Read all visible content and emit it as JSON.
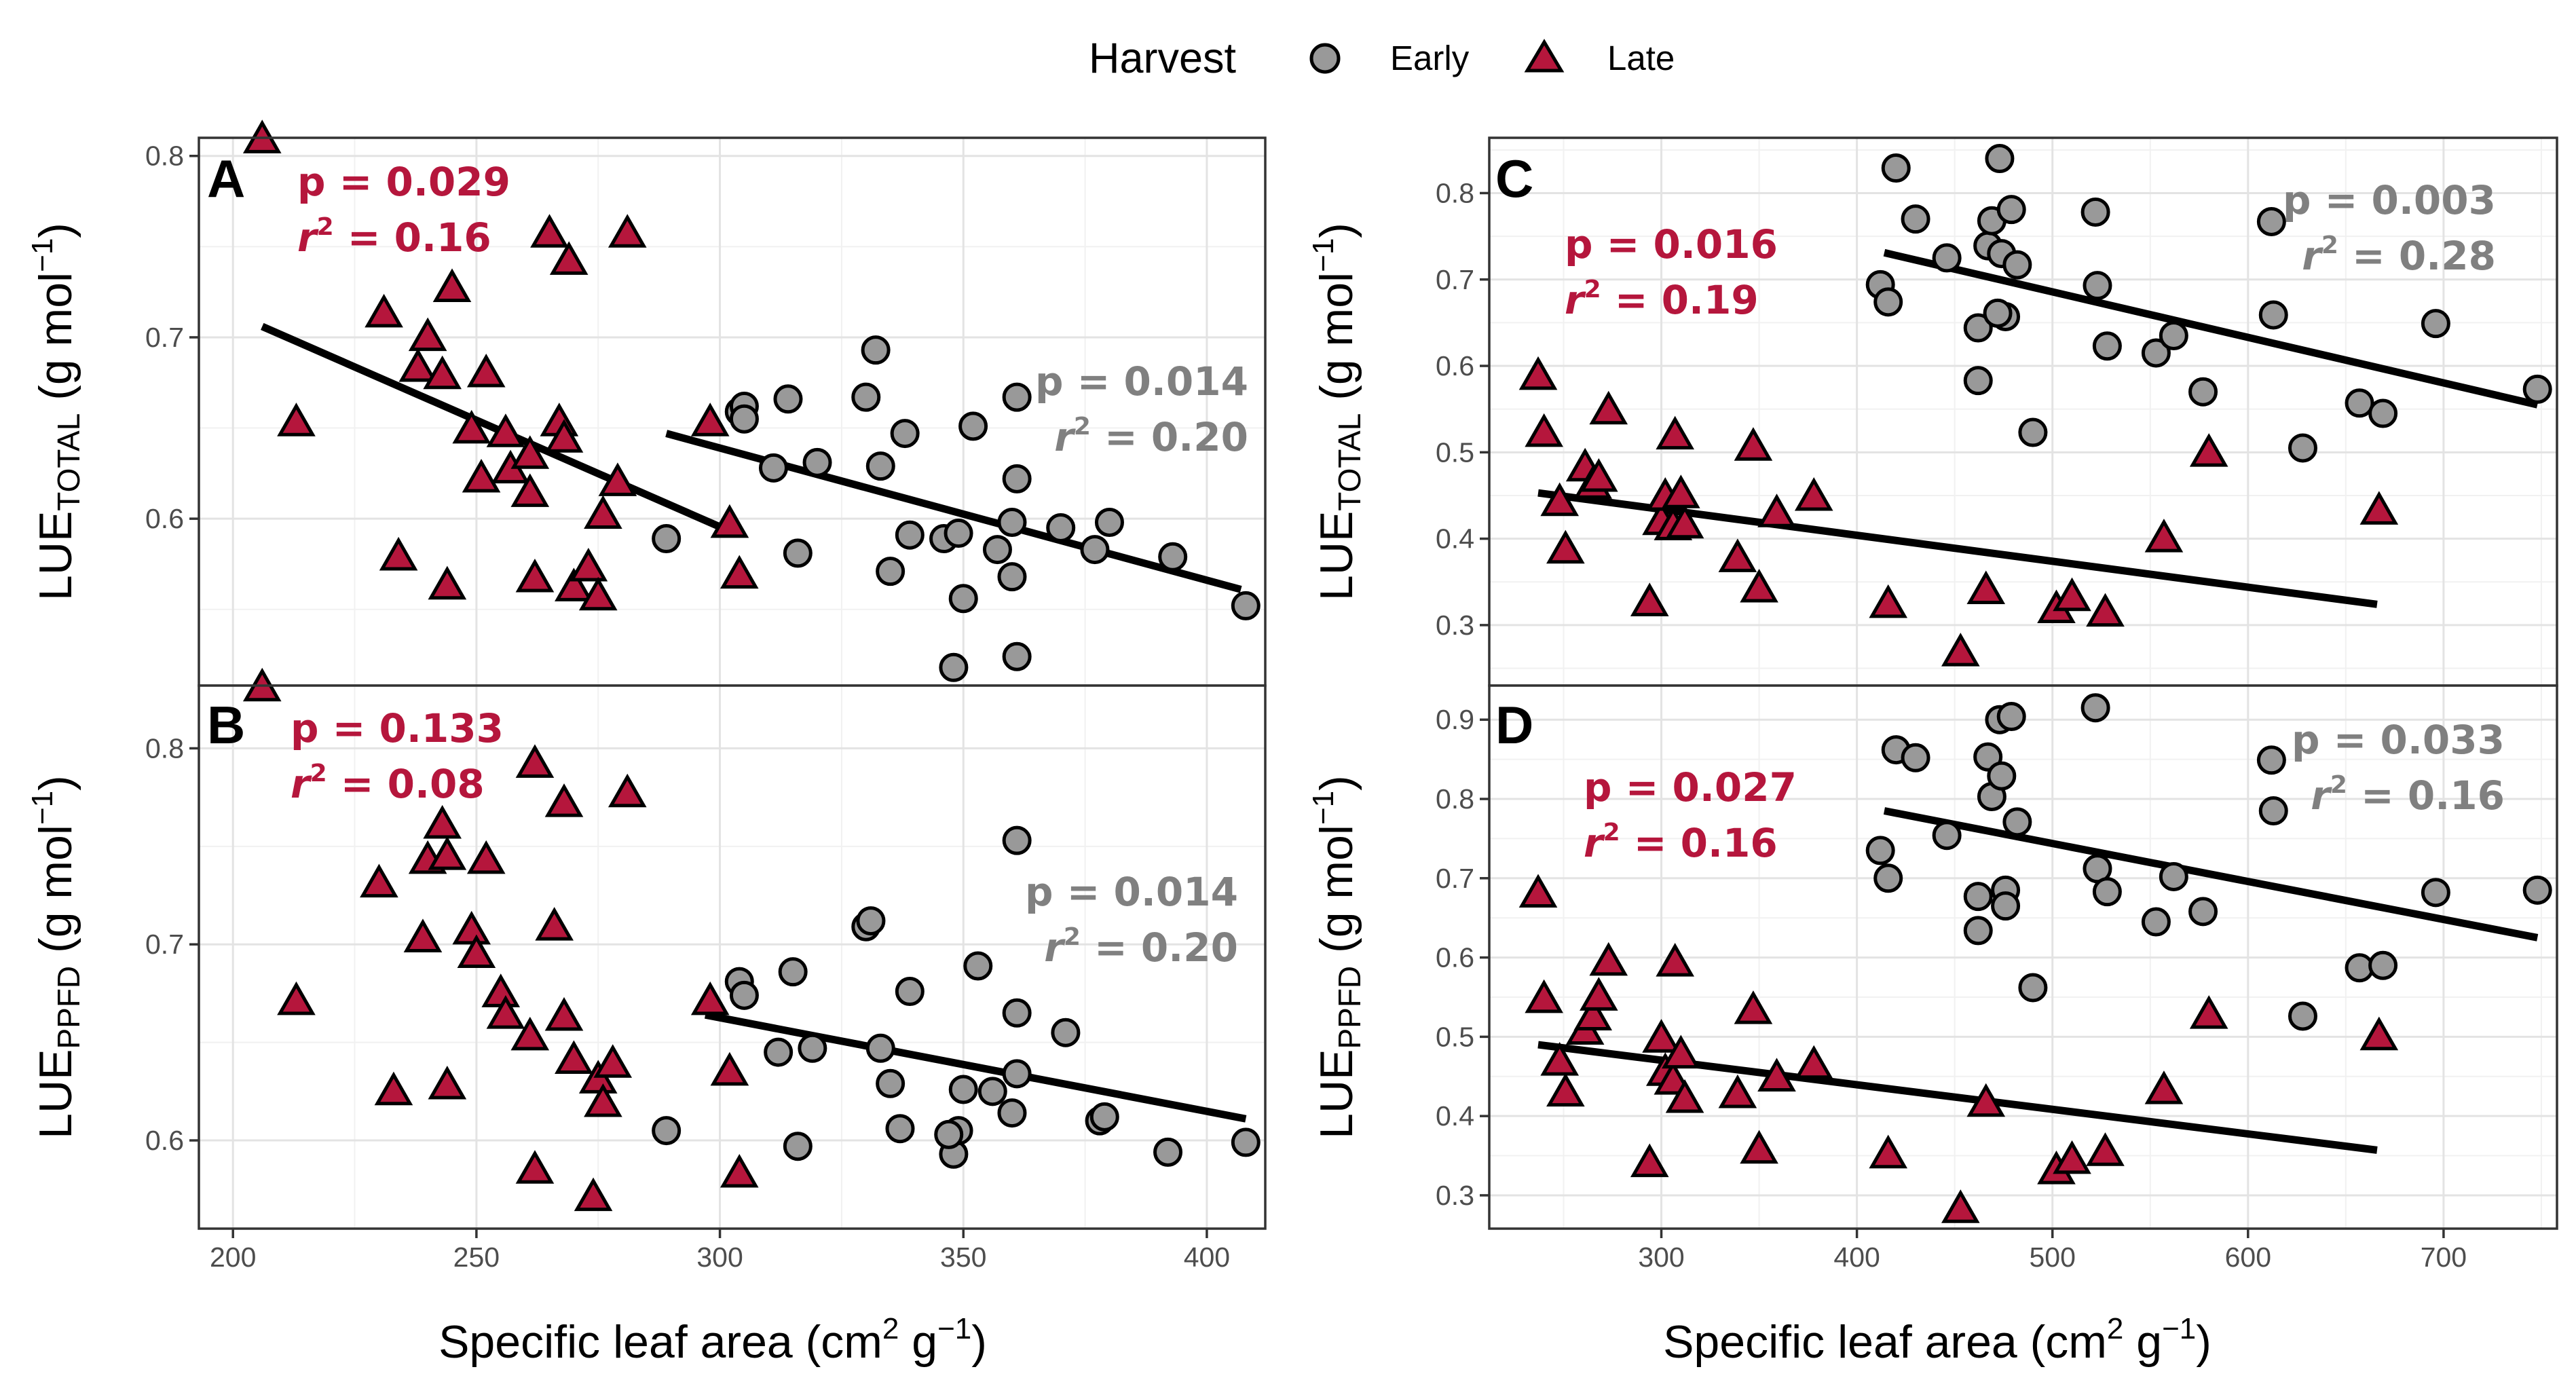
{
  "legend": {
    "title": "Harvest",
    "items": [
      {
        "name": "Early",
        "shape": "circle",
        "color": "#999999"
      },
      {
        "name": "Late",
        "shape": "triangle",
        "color": "#b5163c"
      }
    ]
  },
  "colors": {
    "early": "#999999",
    "late": "#b5163c",
    "stat_early": "#808080",
    "stat_late": "#b5163c"
  },
  "x_axis_title": {
    "main": "Specific leaf area (cm",
    "sup1": "2",
    "mid": " g",
    "sup2": "−1",
    "end": ")"
  },
  "chart_data": [
    {
      "panel": "A",
      "type": "scatter",
      "ylabel": {
        "main": "LUE",
        "sub": "TOTAL",
        "unit": " (g mol",
        "sup": "−1",
        "end": ")"
      },
      "xlim": [
        193,
        412
      ],
      "ylim": [
        0.508,
        0.81
      ],
      "x_ticks": [
        200,
        250,
        300,
        350,
        400
      ],
      "y_ticks": [
        0.6,
        0.7,
        0.8
      ],
      "y_tick_labels": [
        "0.6",
        "0.7",
        "0.8"
      ],
      "x_tick_labels": [],
      "stats": {
        "late": {
          "p": "p = 0.029",
          "r2_label": "r",
          "r2_sup": "2",
          "r2_value": " = 0.16"
        },
        "early": {
          "p": "p = 0.014",
          "r2_label": "r",
          "r2_sup": "2",
          "r2_value": " = 0.20"
        }
      },
      "fits": {
        "late": {
          "x": [
            206,
            303
          ],
          "y": [
            0.706,
            0.592
          ]
        },
        "early": {
          "x": [
            289,
            407
          ],
          "y": [
            0.647,
            0.561
          ]
        }
      },
      "series": [
        {
          "name": "Late",
          "x": [
            206,
            213,
            231,
            234,
            238,
            240,
            243,
            244,
            245,
            252,
            249,
            251,
            256,
            257,
            261,
            261,
            262,
            265,
            267,
            268,
            269,
            270,
            273,
            275,
            276,
            279,
            281,
            298,
            302,
            304
          ],
          "y": [
            0.808,
            0.652,
            0.712,
            0.578,
            0.682,
            0.699,
            0.678,
            0.562,
            0.726,
            0.679,
            0.648,
            0.621,
            0.646,
            0.626,
            0.634,
            0.613,
            0.566,
            0.756,
            0.652,
            0.643,
            0.741,
            0.561,
            0.572,
            0.556,
            0.601,
            0.619,
            0.756,
            0.652,
            0.596,
            0.568
          ]
        },
        {
          "name": "Early",
          "x": [
            289,
            304,
            305,
            305,
            311,
            314,
            316,
            320,
            330,
            332,
            333,
            335,
            338,
            339,
            346,
            348,
            349,
            350,
            352,
            357,
            360,
            360,
            361,
            361,
            361,
            370,
            377,
            380,
            393,
            408
          ],
          "y": [
            0.589,
            0.659,
            0.662,
            0.655,
            0.628,
            0.666,
            0.581,
            0.631,
            0.667,
            0.693,
            0.629,
            0.571,
            0.647,
            0.591,
            0.589,
            0.518,
            0.592,
            0.556,
            0.651,
            0.583,
            0.568,
            0.598,
            0.622,
            0.524,
            0.667,
            0.595,
            0.583,
            0.598,
            0.579,
            0.552
          ]
        }
      ]
    },
    {
      "panel": "B",
      "type": "scatter",
      "ylabel": {
        "main": "LUE",
        "sub": "PPFD",
        "unit": " (g mol",
        "sup": "−1",
        "end": ")"
      },
      "xlim": [
        193,
        412
      ],
      "ylim": [
        0.555,
        0.832
      ],
      "x_ticks": [
        200,
        250,
        300,
        350,
        400
      ],
      "y_ticks": [
        0.6,
        0.7,
        0.8
      ],
      "y_tick_labels": [
        "0.6",
        "0.7",
        "0.8"
      ],
      "x_tick_labels": [
        "200",
        "250",
        "300",
        "350",
        "400"
      ],
      "stats": {
        "late": {
          "p": "p = 0.133",
          "r2_label": "r",
          "r2_sup": "2",
          "r2_value": " = 0.08"
        },
        "early": {
          "p": "p = 0.014",
          "r2_label": "r",
          "r2_sup": "2",
          "r2_value": " = 0.20"
        }
      },
      "fits": {
        "early": {
          "x": [
            297,
            408
          ],
          "y": [
            0.664,
            0.611
          ]
        }
      },
      "series": [
        {
          "name": "Late",
          "x": [
            206,
            213,
            230,
            233,
            239,
            240,
            243,
            244,
            244,
            252,
            249,
            250,
            255,
            256,
            261,
            262,
            262,
            266,
            268,
            268,
            270,
            275,
            276,
            278,
            281,
            298,
            302,
            304,
            274
          ],
          "y": [
            0.83,
            0.67,
            0.73,
            0.624,
            0.702,
            0.742,
            0.76,
            0.744,
            0.627,
            0.742,
            0.706,
            0.694,
            0.674,
            0.663,
            0.652,
            0.584,
            0.791,
            0.708,
            0.662,
            0.771,
            0.64,
            0.63,
            0.618,
            0.638,
            0.776,
            0.67,
            0.634,
            0.582,
            0.57
          ]
        },
        {
          "name": "Early",
          "x": [
            289,
            304,
            305,
            312,
            315,
            316,
            319,
            330,
            331,
            333,
            335,
            337,
            339,
            348,
            349,
            350,
            353,
            356,
            360,
            361,
            361,
            361,
            371,
            378,
            379,
            392,
            408,
            347
          ],
          "y": [
            0.605,
            0.681,
            0.674,
            0.645,
            0.686,
            0.597,
            0.647,
            0.709,
            0.712,
            0.647,
            0.629,
            0.606,
            0.676,
            0.593,
            0.605,
            0.626,
            0.689,
            0.625,
            0.614,
            0.634,
            0.665,
            0.753,
            0.655,
            0.61,
            0.612,
            0.594,
            0.599,
            0.603
          ]
        }
      ]
    },
    {
      "panel": "C",
      "type": "scatter",
      "ylabel": {
        "main": "LUE",
        "sub": "TOTAL",
        "unit": " (g mol",
        "sup": "−1",
        "end": ")"
      },
      "xlim": [
        212,
        758
      ],
      "ylim": [
        0.23,
        0.864
      ],
      "x_ticks": [
        300,
        400,
        500,
        600,
        700
      ],
      "y_ticks": [
        0.3,
        0.4,
        0.5,
        0.6,
        0.7,
        0.8
      ],
      "y_tick_labels": [
        "0.3",
        "0.4",
        "0.5",
        "0.6",
        "0.7",
        "0.8"
      ],
      "x_tick_labels": [],
      "stats": {
        "late": {
          "p": "p = 0.016",
          "r2_label": "r",
          "r2_sup": "2",
          "r2_value": " = 0.19"
        },
        "early": {
          "p": "p = 0.003",
          "r2_label": "r",
          "r2_sup": "2",
          "r2_value": " = 0.28"
        }
      },
      "fits": {
        "late": {
          "x": [
            237,
            666
          ],
          "y": [
            0.453,
            0.324
          ]
        },
        "early": {
          "x": [
            414,
            748
          ],
          "y": [
            0.731,
            0.555
          ]
        }
      },
      "series": [
        {
          "name": "Late",
          "x": [
            237,
            240,
            248,
            251,
            261,
            265,
            268,
            273,
            294,
            300,
            302,
            306,
            307,
            310,
            312,
            339,
            347,
            350,
            359,
            378,
            416,
            453,
            466,
            502,
            510,
            527,
            557,
            580,
            667
          ],
          "y": [
            0.586,
            0.52,
            0.44,
            0.385,
            0.48,
            0.46,
            0.468,
            0.546,
            0.324,
            0.418,
            0.446,
            0.412,
            0.517,
            0.449,
            0.414,
            0.375,
            0.504,
            0.34,
            0.427,
            0.446,
            0.322,
            0.266,
            0.338,
            0.316,
            0.33,
            0.312,
            0.398,
            0.497,
            0.43
          ]
        },
        {
          "name": "Early",
          "x": [
            412,
            416,
            420,
            430,
            446,
            462,
            462,
            467,
            469,
            473,
            474,
            476,
            479,
            482,
            490,
            522,
            523,
            528,
            553,
            562,
            577,
            612,
            613,
            628,
            657,
            669,
            696,
            748,
            472
          ],
          "y": [
            0.694,
            0.674,
            0.829,
            0.77,
            0.725,
            0.644,
            0.583,
            0.739,
            0.768,
            0.84,
            0.73,
            0.657,
            0.781,
            0.717,
            0.523,
            0.778,
            0.693,
            0.623,
            0.615,
            0.635,
            0.57,
            0.767,
            0.659,
            0.505,
            0.557,
            0.545,
            0.649,
            0.573,
            0.661
          ]
        }
      ]
    },
    {
      "panel": "D",
      "type": "scatter",
      "ylabel": {
        "main": "LUE",
        "sub": "PPFD",
        "unit": " (g mol",
        "sup": "−1",
        "end": ")"
      },
      "xlim": [
        212,
        758
      ],
      "ylim": [
        0.258,
        0.943
      ],
      "x_ticks": [
        300,
        400,
        500,
        600,
        700
      ],
      "y_ticks": [
        0.3,
        0.4,
        0.5,
        0.6,
        0.7,
        0.8,
        0.9
      ],
      "y_tick_labels": [
        "0.3",
        "0.4",
        "0.5",
        "0.6",
        "0.7",
        "0.8",
        "0.9"
      ],
      "x_tick_labels": [
        "300",
        "400",
        "500",
        "600",
        "700"
      ],
      "stats": {
        "late": {
          "p": "p = 0.027",
          "r2_label": "r",
          "r2_sup": "2",
          "r2_value": " = 0.16"
        },
        "early": {
          "p": "p = 0.033",
          "r2_label": "r",
          "r2_sup": "2",
          "r2_value": " = 0.16"
        }
      },
      "fits": {
        "late": {
          "x": [
            237,
            666
          ],
          "y": [
            0.49,
            0.357
          ]
        },
        "early": {
          "x": [
            414,
            748
          ],
          "y": [
            0.785,
            0.625
          ]
        }
      },
      "series": [
        {
          "name": "Late",
          "x": [
            237,
            240,
            248,
            251,
            261,
            265,
            268,
            273,
            294,
            300,
            302,
            306,
            307,
            310,
            312,
            339,
            347,
            350,
            359,
            378,
            416,
            453,
            466,
            502,
            510,
            527,
            557,
            580,
            667
          ],
          "y": [
            0.678,
            0.545,
            0.466,
            0.427,
            0.505,
            0.523,
            0.548,
            0.592,
            0.338,
            0.495,
            0.453,
            0.442,
            0.591,
            0.475,
            0.419,
            0.425,
            0.531,
            0.355,
            0.446,
            0.462,
            0.349,
            0.28,
            0.414,
            0.329,
            0.342,
            0.352,
            0.43,
            0.525,
            0.498
          ]
        },
        {
          "name": "Early",
          "x": [
            412,
            416,
            420,
            430,
            446,
            462,
            462,
            467,
            469,
            473,
            474,
            476,
            479,
            482,
            490,
            522,
            523,
            528,
            553,
            562,
            577,
            612,
            613,
            628,
            657,
            669,
            696,
            748,
            476
          ],
          "y": [
            0.735,
            0.7,
            0.862,
            0.852,
            0.754,
            0.677,
            0.634,
            0.853,
            0.803,
            0.9,
            0.829,
            0.685,
            0.904,
            0.771,
            0.562,
            0.915,
            0.712,
            0.683,
            0.645,
            0.702,
            0.658,
            0.849,
            0.785,
            0.526,
            0.587,
            0.59,
            0.682,
            0.685,
            0.665
          ]
        }
      ]
    }
  ]
}
